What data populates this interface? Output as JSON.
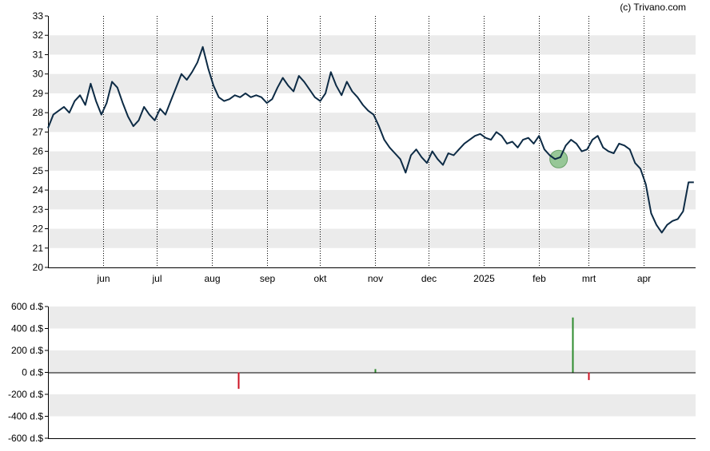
{
  "credit": "(c) Trivano.com",
  "colors": {
    "band": "#ebebeb",
    "line": "#0d2b45",
    "up": "#2e8b2e",
    "down": "#cc1122",
    "marker_fill": "#8fc48f",
    "marker_stroke": "#5a9a5a"
  },
  "chart_data": [
    {
      "type": "line",
      "name": "price",
      "ylim": [
        20,
        33
      ],
      "yticks": [
        20,
        21,
        22,
        23,
        24,
        25,
        26,
        27,
        28,
        29,
        30,
        31,
        32,
        33
      ],
      "grid": true,
      "x_range": [
        "2024-05-01",
        "2025-04-30"
      ],
      "month_ticks": [
        {
          "date": "2024-06-01",
          "label": "jun"
        },
        {
          "date": "2024-07-01",
          "label": "jul"
        },
        {
          "date": "2024-08-01",
          "label": "aug"
        },
        {
          "date": "2024-09-01",
          "label": "sep"
        },
        {
          "date": "2024-10-01",
          "label": "okt"
        },
        {
          "date": "2024-11-01",
          "label": "nov"
        },
        {
          "date": "2024-12-01",
          "label": "dec"
        },
        {
          "date": "2025-01-01",
          "label": "2025"
        },
        {
          "date": "2025-02-01",
          "label": "feb"
        },
        {
          "date": "2025-03-01",
          "label": "mrt"
        },
        {
          "date": "2025-04-01",
          "label": "apr"
        }
      ],
      "dates": [
        "2024-05-01",
        "2024-05-04",
        "2024-05-07",
        "2024-05-10",
        "2024-05-13",
        "2024-05-16",
        "2024-05-19",
        "2024-05-22",
        "2024-05-25",
        "2024-05-28",
        "2024-05-31",
        "2024-06-03",
        "2024-06-06",
        "2024-06-09",
        "2024-06-12",
        "2024-06-15",
        "2024-06-18",
        "2024-06-21",
        "2024-06-24",
        "2024-06-27",
        "2024-06-30",
        "2024-07-03",
        "2024-07-06",
        "2024-07-09",
        "2024-07-12",
        "2024-07-15",
        "2024-07-18",
        "2024-07-21",
        "2024-07-24",
        "2024-07-27",
        "2024-07-30",
        "2024-08-02",
        "2024-08-05",
        "2024-08-08",
        "2024-08-11",
        "2024-08-14",
        "2024-08-17",
        "2024-08-20",
        "2024-08-23",
        "2024-08-26",
        "2024-08-29",
        "2024-09-01",
        "2024-09-04",
        "2024-09-07",
        "2024-09-10",
        "2024-09-13",
        "2024-09-16",
        "2024-09-19",
        "2024-09-22",
        "2024-09-25",
        "2024-09-28",
        "2024-10-01",
        "2024-10-04",
        "2024-10-07",
        "2024-10-10",
        "2024-10-13",
        "2024-10-16",
        "2024-10-19",
        "2024-10-22",
        "2024-10-25",
        "2024-10-28",
        "2024-10-31",
        "2024-11-03",
        "2024-11-06",
        "2024-11-09",
        "2024-11-12",
        "2024-11-15",
        "2024-11-18",
        "2024-11-21",
        "2024-11-24",
        "2024-11-27",
        "2024-11-30",
        "2024-12-03",
        "2024-12-06",
        "2024-12-09",
        "2024-12-12",
        "2024-12-15",
        "2024-12-18",
        "2024-12-21",
        "2024-12-24",
        "2024-12-27",
        "2024-12-30",
        "2025-01-02",
        "2025-01-05",
        "2025-01-08",
        "2025-01-11",
        "2025-01-14",
        "2025-01-17",
        "2025-01-20",
        "2025-01-23",
        "2025-01-26",
        "2025-01-29",
        "2025-02-01",
        "2025-02-04",
        "2025-02-07",
        "2025-02-10",
        "2025-02-13",
        "2025-02-16",
        "2025-02-19",
        "2025-02-22",
        "2025-02-25",
        "2025-02-28",
        "2025-03-03",
        "2025-03-06",
        "2025-03-09",
        "2025-03-12",
        "2025-03-15",
        "2025-03-18",
        "2025-03-21",
        "2025-03-24",
        "2025-03-27",
        "2025-03-30",
        "2025-04-02",
        "2025-04-05",
        "2025-04-08",
        "2025-04-11",
        "2025-04-14",
        "2025-04-17",
        "2025-04-20",
        "2025-04-23",
        "2025-04-26",
        "2025-04-29"
      ],
      "values": [
        27.2,
        27.9,
        28.1,
        28.3,
        28.0,
        28.6,
        28.9,
        28.4,
        29.5,
        28.6,
        27.9,
        28.5,
        29.6,
        29.3,
        28.5,
        27.8,
        27.3,
        27.6,
        28.3,
        27.9,
        27.6,
        28.2,
        27.9,
        28.6,
        29.3,
        30.0,
        29.7,
        30.1,
        30.6,
        31.4,
        30.3,
        29.4,
        28.8,
        28.6,
        28.7,
        28.9,
        28.8,
        29.0,
        28.8,
        28.9,
        28.8,
        28.5,
        28.7,
        29.3,
        29.8,
        29.4,
        29.1,
        29.9,
        29.6,
        29.2,
        28.8,
        28.6,
        29.0,
        30.1,
        29.4,
        28.9,
        29.6,
        29.1,
        28.8,
        28.4,
        28.1,
        27.9,
        27.3,
        26.6,
        26.2,
        25.9,
        25.6,
        24.9,
        25.8,
        26.1,
        25.7,
        25.4,
        26.0,
        25.6,
        25.3,
        25.9,
        25.8,
        26.1,
        26.4,
        26.6,
        26.8,
        26.9,
        26.7,
        26.6,
        27.0,
        26.8,
        26.4,
        26.5,
        26.2,
        26.6,
        26.7,
        26.4,
        26.8,
        26.1,
        25.8,
        25.6,
        25.7,
        26.3,
        26.6,
        26.4,
        26.0,
        26.1,
        26.6,
        26.8,
        26.2,
        26.0,
        25.9,
        26.4,
        26.3,
        26.1,
        25.4,
        25.1,
        24.3,
        22.8,
        22.2,
        21.8,
        22.2,
        22.4,
        22.5,
        22.9,
        24.4,
        24.4
      ],
      "marker": {
        "date": "2025-02-12",
        "value": 25.6
      }
    },
    {
      "type": "bar",
      "name": "insider transactions",
      "ylim": [
        -600,
        600
      ],
      "yticks": [
        {
          "value": 600,
          "label": "600 d.$"
        },
        {
          "value": 400,
          "label": "400 d.$"
        },
        {
          "value": 200,
          "label": "200 d.$"
        },
        {
          "value": 0,
          "label": "0 d.$"
        },
        {
          "value": -200,
          "label": "-200 d.$"
        },
        {
          "value": -400,
          "label": "-400 d.$"
        },
        {
          "value": -600,
          "label": "-600 d.$"
        }
      ],
      "bars": [
        {
          "date": "2024-08-16",
          "value": -150
        },
        {
          "date": "2024-11-01",
          "value": 30
        },
        {
          "date": "2025-02-20",
          "value": 500
        },
        {
          "date": "2025-03-01",
          "value": -70
        }
      ]
    }
  ]
}
